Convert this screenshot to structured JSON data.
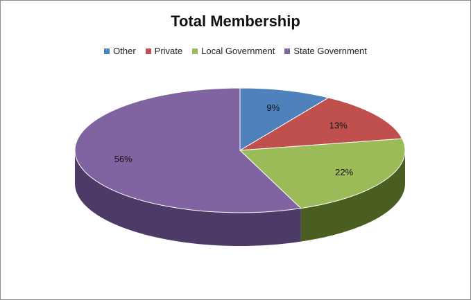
{
  "chart_data": {
    "type": "pie",
    "title": "Total Membership",
    "legend_position": "top",
    "slices": [
      {
        "label": "Other",
        "value": 9,
        "data_label": "9%",
        "color": "#4f81bd",
        "side_color": "#2c4a6e"
      },
      {
        "label": "Private",
        "value": 13,
        "data_label": "13%",
        "color": "#c0504d",
        "side_color": "#6e2b29"
      },
      {
        "label": "Local Government",
        "value": 22,
        "data_label": "22%",
        "color": "#9bbb59",
        "side_color": "#4a5e22"
      },
      {
        "label": "State Government",
        "value": 56,
        "data_label": "56%",
        "color": "#8064a2",
        "side_color": "#4e3a66"
      }
    ]
  }
}
